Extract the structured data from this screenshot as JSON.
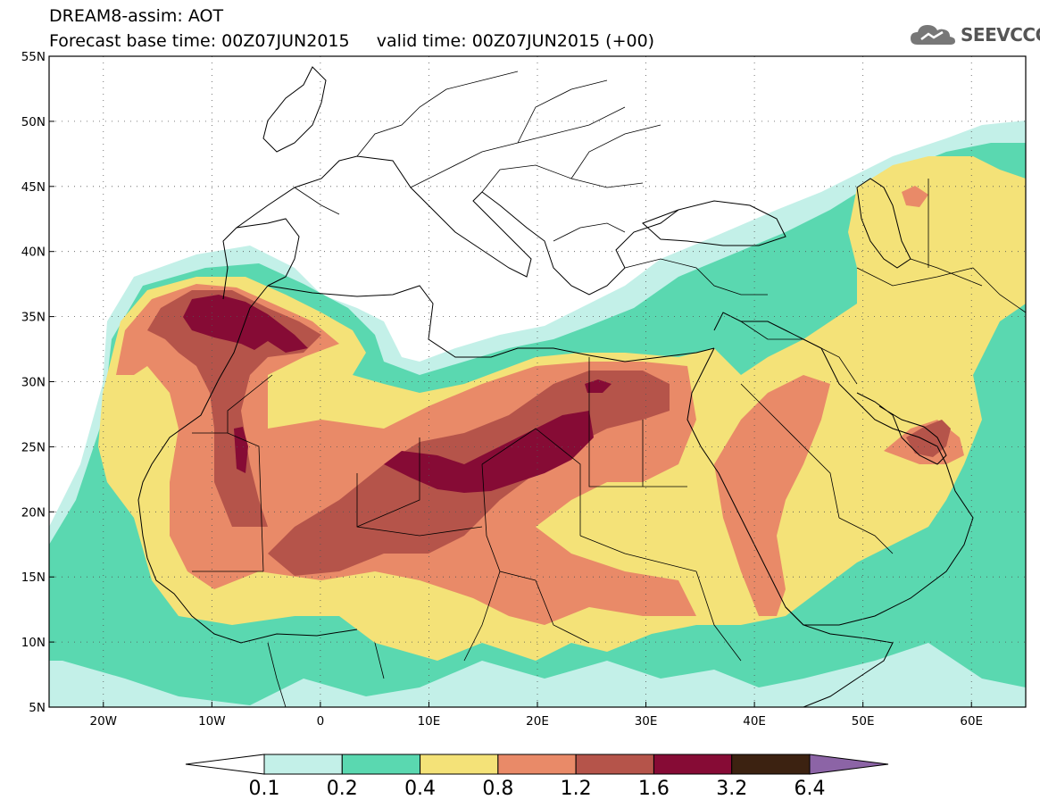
{
  "header": {
    "line1": "DREAM8-assim: AOT",
    "line2": "Forecast base time: 00Z07JUN2015     valid time: 00Z07JUN2015 (+00)",
    "logo_text": "SEEVCCC",
    "logo_icon": "cloud-icon"
  },
  "map": {
    "lon_range": [
      -25,
      65
    ],
    "lat_range": [
      5,
      55
    ],
    "lat_labels": [
      "5N",
      "10N",
      "15N",
      "20N",
      "25N",
      "30N",
      "35N",
      "40N",
      "45N",
      "50N",
      "55N"
    ],
    "lat_values": [
      5,
      10,
      15,
      20,
      25,
      30,
      35,
      40,
      45,
      50,
      55
    ],
    "lon_labels": [
      "20W",
      "10W",
      "0",
      "10E",
      "20E",
      "30E",
      "40E",
      "50E",
      "60E"
    ],
    "lon_values": [
      -20,
      -10,
      0,
      10,
      20,
      30,
      40,
      50,
      60
    ],
    "gridlines": "dotted"
  },
  "colorbar": {
    "labels": [
      "0.1",
      "0.2",
      "0.4",
      "0.8",
      "1.2",
      "1.6",
      "3.2",
      "6.4"
    ],
    "colors": [
      "#ffffff",
      "#c3f0e8",
      "#5ad8b0",
      "#f4e278",
      "#e98a68",
      "#b5544a",
      "#860b35",
      "#3c2211",
      "#8c64a6"
    ]
  },
  "fields": {
    "level_colors": [
      "#c3f0e8",
      "#5ad8b0",
      "#f4e278",
      "#e98a68",
      "#b5544a",
      "#860b35"
    ]
  }
}
